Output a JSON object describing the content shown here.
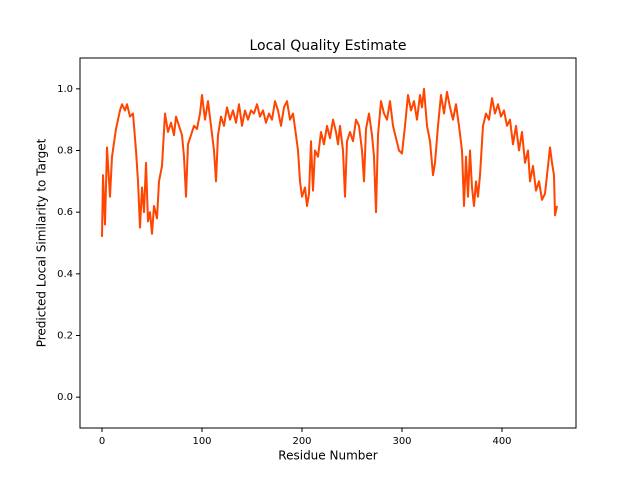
{
  "chart_data": {
    "type": "line",
    "title": "Local Quality Estimate",
    "x_label": "Residue Number",
    "y_label": "Predicted Local Similarity to Target",
    "xlim": [
      -22,
      474
    ],
    "ylim": [
      -0.1,
      1.1
    ],
    "xticks": [
      0,
      100,
      200,
      300,
      400
    ],
    "yticks": [
      {
        "value": 0,
        "label": "0.0"
      },
      0.2,
      0.4,
      0.6,
      0.8,
      {
        "value": 1,
        "label": "1.0"
      }
    ],
    "grid": false,
    "series": [
      {
        "color": "#ff4500",
        "x": [
          0,
          1,
          3,
          5,
          8,
          10,
          14,
          18,
          20,
          23,
          25,
          28,
          31,
          34,
          36,
          38,
          40,
          42,
          44,
          46,
          48,
          50,
          52,
          55,
          57,
          60,
          63,
          66,
          69,
          72,
          74,
          77,
          80,
          82,
          84,
          86,
          89,
          92,
          95,
          98,
          100,
          103,
          106,
          109,
          112,
          114,
          116,
          119,
          122,
          125,
          128,
          131,
          134,
          137,
          140,
          143,
          146,
          149,
          152,
          155,
          158,
          161,
          164,
          167,
          170,
          173,
          176,
          179,
          182,
          185,
          188,
          191,
          194,
          196,
          198,
          200,
          203,
          205,
          207,
          209,
          211,
          213,
          216,
          219,
          222,
          225,
          228,
          231,
          234,
          236,
          238,
          241,
          243,
          245,
          248,
          251,
          254,
          257,
          260,
          262,
          264,
          267,
          270,
          272,
          274,
          276,
          279,
          282,
          285,
          288,
          291,
          294,
          297,
          300,
          303,
          306,
          309,
          312,
          315,
          318,
          320,
          322,
          325,
          328,
          331,
          333,
          336,
          339,
          342,
          345,
          348,
          351,
          354,
          357,
          360,
          362,
          364,
          366,
          368,
          370,
          372,
          374,
          376,
          378,
          381,
          384,
          387,
          390,
          393,
          396,
          399,
          402,
          405,
          408,
          411,
          414,
          417,
          420,
          423,
          426,
          428,
          431,
          434,
          437,
          440,
          443,
          446,
          448,
          450,
          452,
          453,
          455
        ],
        "values": [
          0.52,
          0.72,
          0.56,
          0.81,
          0.65,
          0.78,
          0.87,
          0.93,
          0.95,
          0.93,
          0.95,
          0.91,
          0.92,
          0.8,
          0.7,
          0.55,
          0.68,
          0.6,
          0.76,
          0.57,
          0.6,
          0.53,
          0.62,
          0.58,
          0.7,
          0.75,
          0.92,
          0.86,
          0.89,
          0.85,
          0.91,
          0.88,
          0.85,
          0.78,
          0.65,
          0.82,
          0.85,
          0.88,
          0.87,
          0.92,
          0.98,
          0.9,
          0.96,
          0.88,
          0.8,
          0.7,
          0.85,
          0.91,
          0.88,
          0.94,
          0.9,
          0.93,
          0.89,
          0.95,
          0.88,
          0.93,
          0.9,
          0.93,
          0.92,
          0.95,
          0.91,
          0.93,
          0.89,
          0.92,
          0.9,
          0.96,
          0.93,
          0.88,
          0.94,
          0.96,
          0.9,
          0.92,
          0.85,
          0.8,
          0.7,
          0.65,
          0.68,
          0.62,
          0.66,
          0.83,
          0.67,
          0.8,
          0.78,
          0.86,
          0.82,
          0.88,
          0.84,
          0.9,
          0.86,
          0.82,
          0.88,
          0.8,
          0.65,
          0.83,
          0.86,
          0.83,
          0.9,
          0.88,
          0.8,
          0.7,
          0.87,
          0.92,
          0.85,
          0.78,
          0.6,
          0.85,
          0.96,
          0.92,
          0.9,
          0.96,
          0.88,
          0.84,
          0.8,
          0.79,
          0.88,
          0.98,
          0.93,
          0.96,
          0.9,
          0.98,
          0.94,
          1.0,
          0.88,
          0.83,
          0.72,
          0.76,
          0.88,
          0.98,
          0.92,
          0.99,
          0.94,
          0.9,
          0.95,
          0.88,
          0.8,
          0.62,
          0.78,
          0.65,
          0.8,
          0.68,
          0.62,
          0.7,
          0.65,
          0.72,
          0.88,
          0.92,
          0.9,
          0.97,
          0.92,
          0.95,
          0.91,
          0.93,
          0.88,
          0.9,
          0.82,
          0.88,
          0.8,
          0.86,
          0.76,
          0.8,
          0.7,
          0.75,
          0.67,
          0.7,
          0.64,
          0.66,
          0.75,
          0.81,
          0.76,
          0.72,
          0.59,
          0.62
        ]
      }
    ]
  }
}
